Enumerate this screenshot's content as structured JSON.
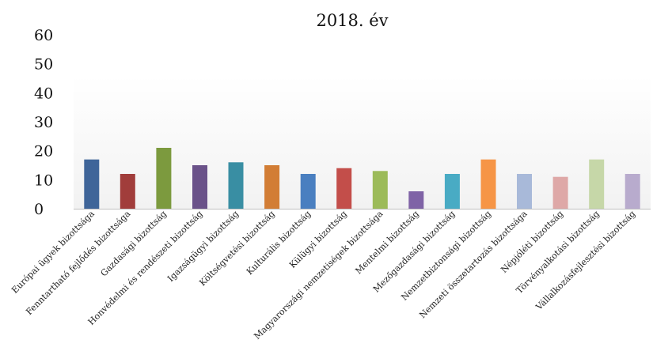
{
  "chart_data": {
    "type": "bar",
    "title": "2018. év",
    "xlabel": "",
    "ylabel": "",
    "ylim": [
      0,
      60
    ],
    "yticks": [
      0,
      10,
      20,
      30,
      40,
      50,
      60
    ],
    "grid": false,
    "legend": "none",
    "categories": [
      "Európai ügyek bizottsága",
      "Fenntartható fejlődés bizottsága",
      "Gazdasági bizottság",
      "Honvédelmi és rendészeti bizottság",
      "Igazságügyi bizottság",
      "Költségvetési bizottság",
      "Kulturális bizottság",
      "Külügyi bizottság",
      "Magyarországi nemzetiségek bizottsága",
      "Mentelmi bizottság",
      "Mezőgazdasági bizottság",
      "Nemzetbiztonsági bizottság",
      "Nemzeti összetartozás bizottsága",
      "Népjóléti bizottság",
      "Törvényalkotási bizottság",
      "Vállalkozásfejlesztési bizottság"
    ],
    "values": [
      17,
      12,
      21,
      15,
      16,
      15,
      12,
      14,
      13,
      6,
      12,
      17,
      12,
      11,
      17,
      12
    ],
    "colors": [
      "#3f6599",
      "#a13d3b",
      "#7c9a3e",
      "#6a5289",
      "#398ea3",
      "#d27d35",
      "#4a7fc0",
      "#c34e4a",
      "#9cbb59",
      "#7f63a6",
      "#49abc4",
      "#f69546",
      "#a8b9d9",
      "#dea8a7",
      "#c6d7a8",
      "#b8abcd"
    ]
  }
}
